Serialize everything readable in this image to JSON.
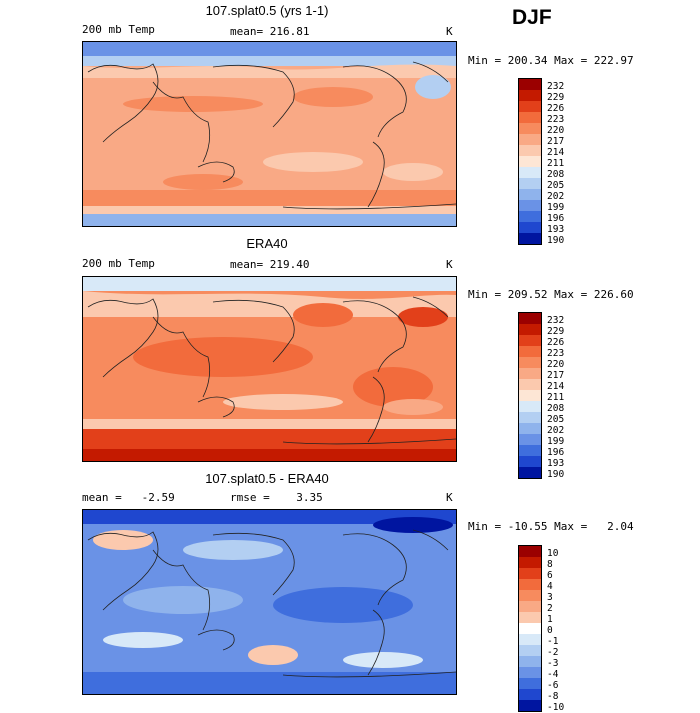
{
  "season": "DJF",
  "panels": [
    {
      "title": "107.splat0.5 (yrs 1-1)",
      "left_label": "200 mb Temp",
      "center_label": "mean= 216.81",
      "right_label": "K",
      "minmax": "Min = 200.34 Max = 222.97",
      "colorbar": {
        "labels": [
          "232",
          "229",
          "226",
          "223",
          "220",
          "217",
          "214",
          "211",
          "208",
          "205",
          "202",
          "199",
          "196",
          "193",
          "190"
        ],
        "colors": [
          "#9b0000",
          "#c41a00",
          "#e2401a",
          "#f26b3c",
          "#f78b5e",
          "#f9a985",
          "#fbc9ae",
          "#fde6d5",
          "#d8e9f8",
          "#b3cff2",
          "#8fb3ec",
          "#6a92e6",
          "#3f6edd",
          "#1f47cf",
          "#0015a0"
        ]
      }
    },
    {
      "title": "ERA40",
      "left_label": "200 mb Temp",
      "center_label": "mean= 219.40",
      "right_label": "K",
      "minmax": "Min = 209.52 Max = 226.60",
      "colorbar": {
        "labels": [
          "232",
          "229",
          "226",
          "223",
          "220",
          "217",
          "214",
          "211",
          "208",
          "205",
          "202",
          "199",
          "196",
          "193",
          "190"
        ],
        "colors": [
          "#9b0000",
          "#c41a00",
          "#e2401a",
          "#f26b3c",
          "#f78b5e",
          "#f9a985",
          "#fbc9ae",
          "#fde6d5",
          "#d8e9f8",
          "#b3cff2",
          "#8fb3ec",
          "#6a92e6",
          "#3f6edd",
          "#1f47cf",
          "#0015a0"
        ]
      }
    },
    {
      "title": "107.splat0.5 - ERA40",
      "left_label": "mean =   -2.59",
      "center_label": "rmse =    3.35",
      "right_label": "K",
      "minmax": "Min = -10.55 Max =   2.04",
      "colorbar": {
        "labels": [
          "10",
          "8",
          "6",
          "4",
          "3",
          "2",
          "1",
          "0",
          "-1",
          "-2",
          "-3",
          "-4",
          "-6",
          "-8",
          "-10"
        ],
        "colors": [
          "#9b0000",
          "#c41a00",
          "#e2401a",
          "#f26b3c",
          "#f78b5e",
          "#f9a985",
          "#fbc9ae",
          "#ffffff",
          "#d8e9f8",
          "#b3cff2",
          "#8fb3ec",
          "#6a92e6",
          "#3f6edd",
          "#1f47cf",
          "#0015a0"
        ]
      }
    }
  ]
}
